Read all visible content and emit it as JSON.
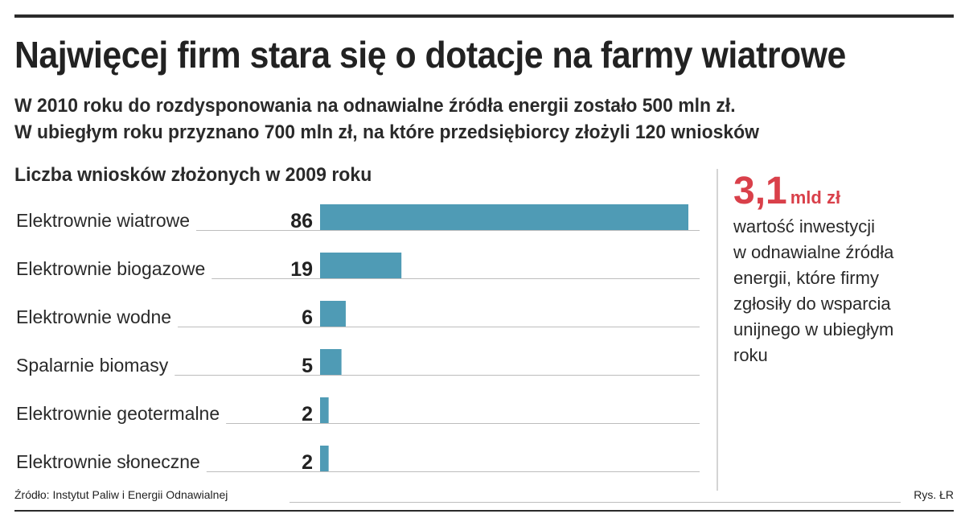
{
  "header": {
    "title": "Najwięcej firm stara się o dotacje na farmy wiatrowe",
    "subtitle_lines": [
      "W 2010 roku do rozdysponowania na odnawialne źródła energii zostało 500 mln zł.",
      "W ubiegłym roku przyznano 700 mln zł, na które przedsiębiorcy złożyli 120 wniosków"
    ]
  },
  "chart_data": {
    "type": "bar",
    "orientation": "horizontal",
    "title": "Liczba wniosków złożonych w 2009 roku",
    "categories": [
      "Elektrownie wiatrowe",
      "Elektrownie biogazowe",
      "Elektrownie wodne",
      "Spalarnie biomasy",
      "Elektrownie geotermalne",
      "Elektrownie słoneczne"
    ],
    "values": [
      86,
      19,
      6,
      5,
      2,
      2
    ],
    "data_labels": [
      "86",
      "19",
      "6",
      "5",
      "2",
      "2"
    ],
    "xlim": [
      0,
      86
    ],
    "grid": false,
    "legend": "none",
    "bar_color": "#4f9bb5"
  },
  "side_fact": {
    "number": "3,1",
    "unit": "mld zł",
    "text": "wartość inwestycji\nw odnawialne źródła\nenergii, które firmy\nzgłosiły do wsparcia\nunijnego w ubiegłym\nroku",
    "number_color": "#d9404a"
  },
  "footer": {
    "source": "Źródło: Instytut Paliw i Energii Odnawialnej",
    "credit": "Rys. ŁR"
  }
}
